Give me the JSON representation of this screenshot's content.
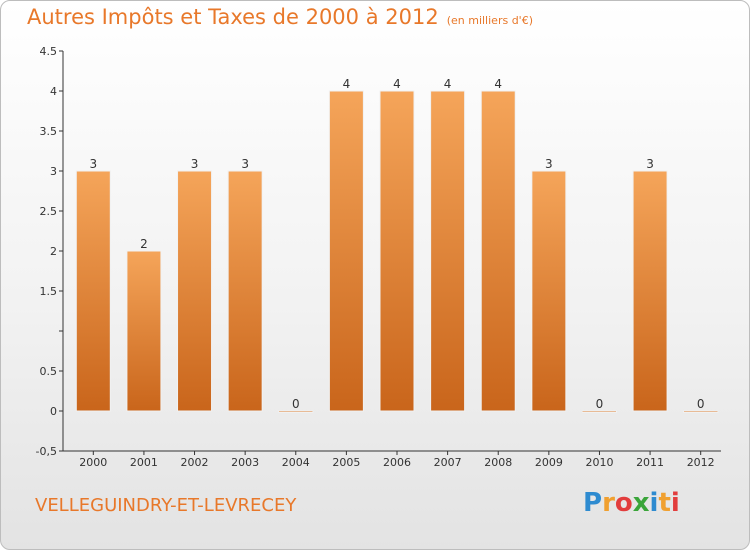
{
  "header": {
    "title": "Autres Impôts et Taxes de 2000 à 2012",
    "unit": "(en milliers d'€)"
  },
  "commune": "VELLEGUINDRY-ET-LEVRECEY",
  "brand": {
    "letters": [
      "P",
      "r",
      "o",
      "x",
      "i",
      "t",
      "i"
    ],
    "colors": [
      "#2e8bd0",
      "#f0a030",
      "#e23d3d",
      "#3aa53a",
      "#2e8bd0",
      "#f0a030",
      "#e23d3d"
    ]
  },
  "colors": {
    "bar_top": "#f5a55a",
    "bar_bottom": "#c9651b",
    "title": "#e8782a"
  },
  "chart_data": {
    "type": "bar",
    "categories": [
      "2000",
      "2001",
      "2002",
      "2003",
      "2004",
      "2005",
      "2006",
      "2007",
      "2008",
      "2009",
      "2010",
      "2011",
      "2012"
    ],
    "values": [
      3,
      2,
      3,
      3,
      0,
      4,
      4,
      4,
      4,
      3,
      0,
      3,
      0
    ],
    "data_labels": [
      "3",
      "2",
      "3",
      "3",
      "0",
      "4",
      "4",
      "4",
      "4",
      "3",
      "0",
      "3",
      "0"
    ],
    "ylim": [
      -0.5,
      4.5
    ],
    "yticks": [
      -0.5,
      0,
      0.5,
      1,
      1.5,
      2,
      2.5,
      3,
      3.5,
      4,
      4.5
    ],
    "ytick_labels": [
      "-0,5",
      "0",
      "0.5",
      "",
      "1.5",
      "2",
      "2.5",
      "3",
      "3.5",
      "4",
      "4.5"
    ],
    "grid": false,
    "legend": "none"
  }
}
